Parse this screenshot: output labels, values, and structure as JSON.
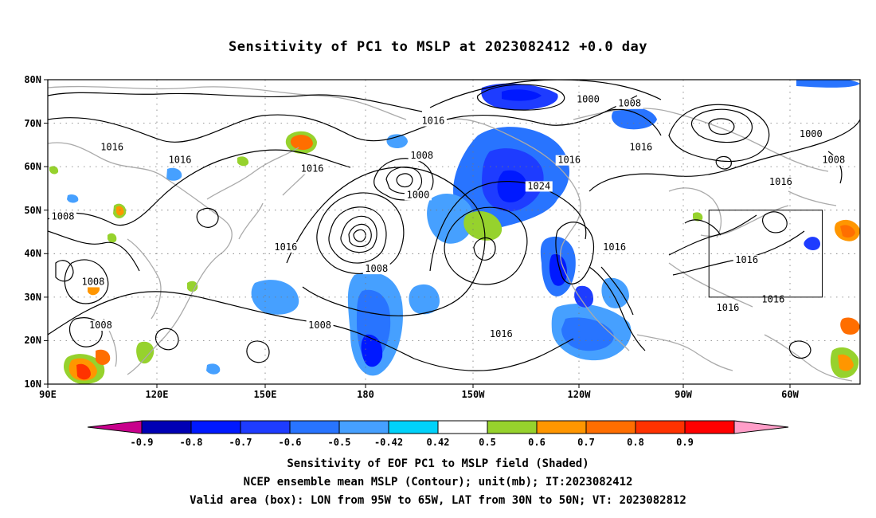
{
  "title": "Sensitivity of PC1 to MSLP at 2023082412 +0.0 day",
  "lat_labels": [
    "80N",
    "70N",
    "60N",
    "50N",
    "40N",
    "30N",
    "20N",
    "10N"
  ],
  "lon_labels": [
    "90E",
    "120E",
    "150E",
    "180",
    "150W",
    "120W",
    "90W",
    "60W"
  ],
  "colorbar": {
    "labels": [
      "-0.9",
      "-0.8",
      "-0.7",
      "-0.6",
      "-0.5",
      "-0.42",
      "0.42",
      "0.5",
      "0.6",
      "0.7",
      "0.8",
      "0.9"
    ],
    "colors": [
      "#c8008c",
      "#0000b4",
      "#0019ff",
      "#1e3cff",
      "#2874ff",
      "#46a0ff",
      "#00d2fa",
      "#ffffff",
      "#96d22d",
      "#ff9600",
      "#ff6e00",
      "#ff3200",
      "#ff0000",
      "#ff9ec8"
    ]
  },
  "contour_labels": [
    {
      "text": "1016",
      "lon": 107,
      "lat": 64
    },
    {
      "text": "1016",
      "lon": 125,
      "lat": 61
    },
    {
      "text": "1016",
      "lon": 160,
      "lat": 59
    },
    {
      "text": "1016",
      "lon": 192,
      "lat": 70
    },
    {
      "text": "1016",
      "lon": 228,
      "lat": 61
    },
    {
      "text": "1016",
      "lon": 247,
      "lat": 64
    },
    {
      "text": "1016",
      "lon": 284,
      "lat": 56
    },
    {
      "text": "1016",
      "lon": 153,
      "lat": 41
    },
    {
      "text": "1016",
      "lon": 240,
      "lat": 41
    },
    {
      "text": "1016",
      "lon": 275,
      "lat": 38
    },
    {
      "text": "1016",
      "lon": 270,
      "lat": 27
    },
    {
      "text": "1016",
      "lon": 282,
      "lat": 29
    },
    {
      "text": "1016",
      "lon": 210,
      "lat": 21
    },
    {
      "text": "1000",
      "lon": 233,
      "lat": 75
    },
    {
      "text": "1000",
      "lon": 188,
      "lat": 53
    },
    {
      "text": "1000",
      "lon": 292,
      "lat": 67
    },
    {
      "text": "1008",
      "lon": 244,
      "lat": 74
    },
    {
      "text": "1008",
      "lon": 189,
      "lat": 62
    },
    {
      "text": "1008",
      "lon": 177,
      "lat": 36
    },
    {
      "text": "1008",
      "lon": 298,
      "lat": 61
    },
    {
      "text": "1008",
      "lon": 94,
      "lat": 48
    },
    {
      "text": "1008",
      "lon": 102,
      "lat": 33
    },
    {
      "text": "1008",
      "lon": 104,
      "lat": 23
    },
    {
      "text": "1008",
      "lon": 162,
      "lat": 23
    },
    {
      "text": "1024",
      "lon": 220,
      "lat": 55
    }
  ],
  "valid_box": {
    "lon_min": 265,
    "lon_max": 295,
    "lat_min": 30,
    "lat_max": 50
  },
  "caption": [
    "Sensitivity of EOF PC1 to MSLP field (Shaded)",
    "NCEP ensemble mean MSLP (Contour); unit(mb); IT:2023082412",
    "Valid area (box): LON from 95W to 65W, LAT from 30N to 50N; VT: 2023082812"
  ]
}
